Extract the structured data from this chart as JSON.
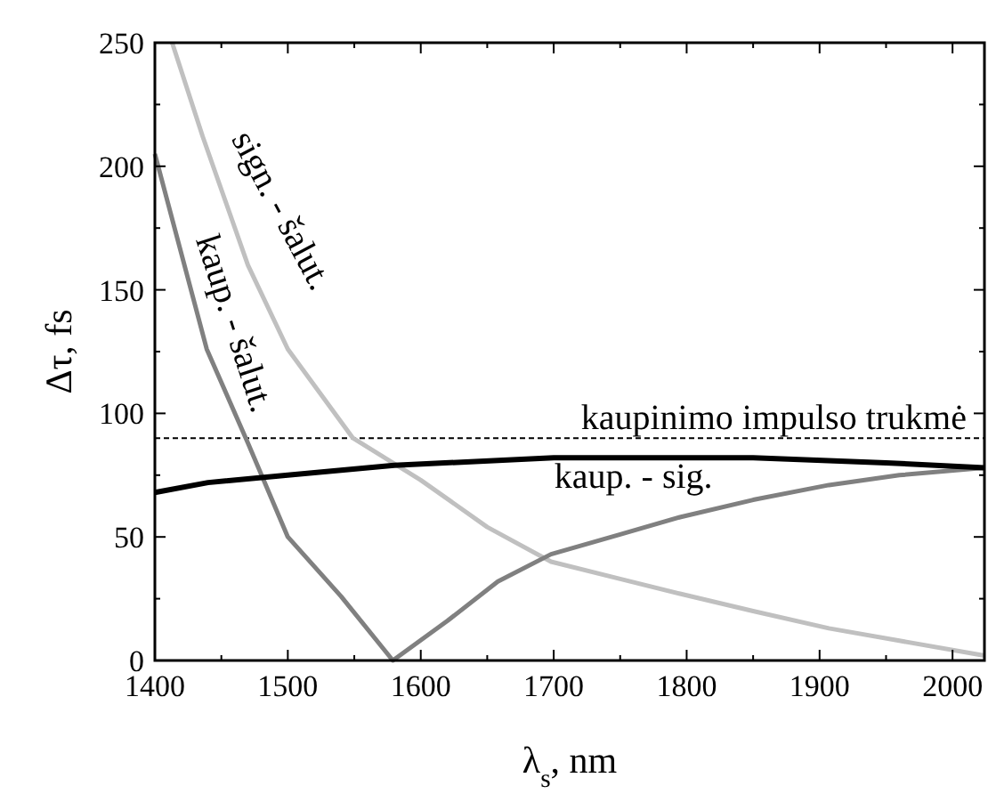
{
  "chart_data": {
    "type": "line",
    "xlabel": "λ$_{s}$, nm",
    "ylabel": "Δτ, fs",
    "xlim": [
      1400,
      2024
    ],
    "ylim": [
      0,
      250
    ],
    "xticks": [
      1400,
      1500,
      1600,
      1700,
      1800,
      1900,
      2000
    ],
    "yticks": [
      0,
      50,
      100,
      150,
      200,
      250
    ],
    "grid": false,
    "marker": "none",
    "series": [
      {
        "name": "sign. - šalut.",
        "color": "#c0c0c0",
        "x": [
          1413,
          1436,
          1470,
          1500,
          1549,
          1600,
          1650,
          1698,
          1750,
          1795,
          1850,
          1907,
          1960,
          2024
        ],
        "values": [
          250,
          212,
          160,
          126,
          90,
          73,
          54,
          40,
          33,
          27,
          20,
          13,
          8,
          2
        ]
      },
      {
        "name": "kaup. - šalut.",
        "color": "#808080",
        "x": [
          1400,
          1439,
          1470,
          1500,
          1540,
          1579,
          1620,
          1658,
          1698,
          1750,
          1795,
          1850,
          1907,
          1960,
          2024
        ],
        "values": [
          205,
          126,
          88,
          50,
          26,
          0,
          16,
          32,
          43,
          51,
          58,
          65,
          71,
          75,
          78
        ]
      },
      {
        "name": "kaup. - sig.",
        "color": "#000000",
        "x": [
          1400,
          1440,
          1500,
          1580,
          1700,
          1850,
          1950,
          2024
        ],
        "values": [
          68,
          72,
          75,
          79,
          82,
          82,
          80,
          78
        ]
      }
    ],
    "ref_lines": [
      {
        "axis": "y",
        "value": 90,
        "label": "kaupinimo impulso trukmė",
        "line_style": "dashed",
        "color": "#000000"
      }
    ]
  }
}
